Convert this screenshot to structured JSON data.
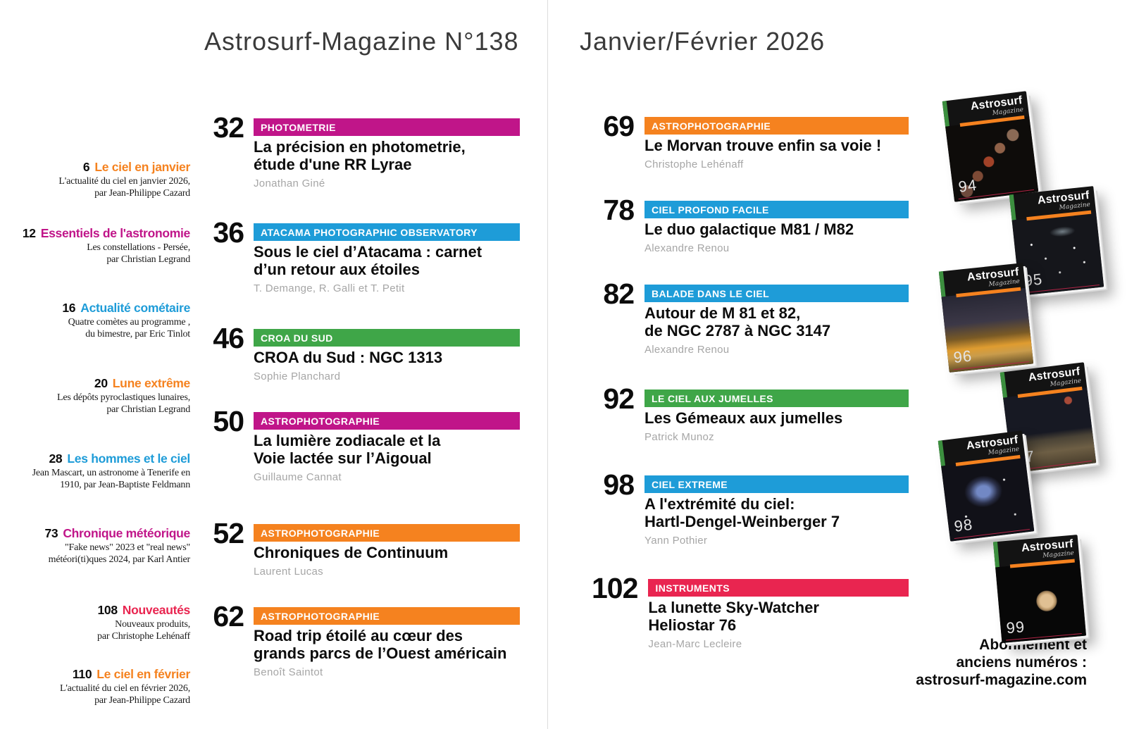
{
  "header": {
    "left": "Astrosurf-Magazine N°138",
    "right": "Janvier/Février 2026"
  },
  "colors": {
    "orange": "#F5821F",
    "magenta": "#C01589",
    "blue": "#1E9CD8",
    "green": "#3FA648",
    "red": "#E92550"
  },
  "sidebar": {
    "items": [
      {
        "page": "6",
        "title": "Le ciel en janvier",
        "color": "orange",
        "desc": "L'actualité du ciel en janvier 2026,\npar Jean-Philippe Cazard"
      },
      {
        "page": "12",
        "title": "Essentiels de l'astronomie",
        "color": "magenta",
        "desc": "Les constellations - Persée,\npar Christian Legrand"
      },
      {
        "page": "16",
        "title": "Actualité cométaire",
        "color": "blue",
        "desc": "Quatre comètes au programme ,\ndu bimestre, par Eric Tinlot"
      },
      {
        "page": "20",
        "title": "Lune extrême",
        "color": "orange",
        "desc": "Les dépôts pyroclastiques lunaires,\npar Christian Legrand"
      },
      {
        "page": "28",
        "title": "Les hommes et le ciel",
        "color": "blue",
        "desc": "Jean Mascart, un astronome à Tenerife en\n1910, par Jean-Baptiste Feldmann"
      },
      {
        "page": "73",
        "title": "Chronique météorique",
        "color": "magenta",
        "desc": "\"Fake news\" 2023 et \"real news\"\nmétéori(ti)ques 2024, par Karl Antier"
      },
      {
        "page": "108",
        "title": "Nouveautés",
        "color": "red",
        "desc": "Nouveaux produits,\npar Christophe Lehénaff"
      },
      {
        "page": "110",
        "title": "Le ciel en février",
        "color": "orange",
        "desc": "L'actualité du ciel en février 2026,\npar Jean-Philippe Cazard"
      }
    ]
  },
  "features_left": [
    {
      "page": "32",
      "category": "PHOTOMETRIE",
      "color": "magenta",
      "title": "La précision en photometrie,\nétude d'une RR Lyrae",
      "author": "Jonathan Giné"
    },
    {
      "page": "36",
      "category": "ATACAMA PHOTOGRAPHIC OBSERVATORY",
      "color": "blue",
      "title": "Sous le ciel d’Atacama : carnet\nd’un retour aux étoiles",
      "author": "T. Demange, R. Galli et T. Petit"
    },
    {
      "page": "46",
      "category": "CROA DU SUD",
      "color": "green",
      "title": "CROA du Sud : NGC 1313",
      "author": "Sophie Planchard"
    },
    {
      "page": "50",
      "category": "ASTROPHOTOGRAPHIE",
      "color": "magenta",
      "title": "La lumière zodiacale et la\nVoie lactée sur l’Aigoual",
      "author": "Guillaume Cannat"
    },
    {
      "page": "52",
      "category": "ASTROPHOTOGRAPHIE",
      "color": "orange",
      "title": "Chroniques de Continuum",
      "author": "Laurent Lucas"
    },
    {
      "page": "62",
      "category": "ASTROPHOTOGRAPHIE",
      "color": "orange",
      "title": "Road trip étoilé au cœur des\ngrands parcs de l’Ouest américain",
      "author": "Benoît Saintot"
    }
  ],
  "features_right": [
    {
      "page": "69",
      "category": "ASTROPHOTOGRAPHIE",
      "color": "orange",
      "title": "Le Morvan trouve enfin sa voie !",
      "author": "Christophe Lehénaff"
    },
    {
      "page": "78",
      "category": "CIEL PROFOND FACILE",
      "color": "blue",
      "title": "Le duo galactique M81 / M82",
      "author": "Alexandre Renou"
    },
    {
      "page": "82",
      "category": "BALADE DANS LE CIEL",
      "color": "blue",
      "title": "Autour de M 81 et 82,\nde NGC 2787 à NGC 3147",
      "author": "Alexandre Renou"
    },
    {
      "page": "92",
      "category": "LE CIEL AUX JUMELLES",
      "color": "green",
      "title": "Les Gémeaux aux jumelles",
      "author": "Patrick Munoz"
    },
    {
      "page": "98",
      "category": "CIEL EXTREME",
      "color": "blue",
      "title": "A l'extrémité du ciel:\nHartl-Dengel-Weinberger 7",
      "author": "Yann Pothier"
    },
    {
      "page": "102",
      "category": "INSTRUMENTS",
      "color": "red",
      "title": "La lunette Sky-Watcher\nHeliostar 76",
      "author": "Jean-Marc Lecleire"
    }
  ],
  "covers": {
    "brand": "Astrosurf",
    "sub": "Magazine",
    "issues": [
      "94",
      "95",
      "96",
      "97",
      "98",
      "99"
    ]
  },
  "footer": {
    "text": "Abonnement et\nanciens numéros :\nastrosurf-magazine.com"
  }
}
